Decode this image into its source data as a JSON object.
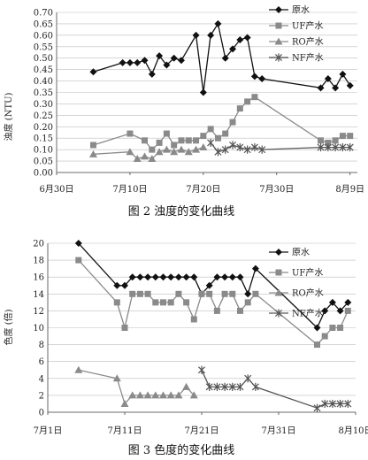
{
  "chart_data": [
    {
      "type": "line",
      "caption": "图 2  浊度的变化曲线",
      "ylabel": "浊度 (NTU)",
      "xlabel": "",
      "x_axis": "date",
      "xlim": [
        "2015-06-30",
        "2015-08-10"
      ],
      "xticks": [
        {
          "date": "2015-06-30",
          "label": "6月30日"
        },
        {
          "date": "2015-07-10",
          "label": "7月10日"
        },
        {
          "date": "2015-07-20",
          "label": "7月20日"
        },
        {
          "date": "2015-07-30",
          "label": "7月30日"
        },
        {
          "date": "2015-08-09",
          "label": "8月9日"
        }
      ],
      "ylim": [
        0,
        0.7
      ],
      "yticks": [
        0,
        0.05,
        0.1,
        0.15,
        0.2,
        0.25,
        0.3,
        0.35,
        0.4,
        0.45,
        0.5,
        0.55,
        0.6,
        0.65,
        0.7
      ],
      "legend": "top-right",
      "series": [
        {
          "name": "原水",
          "color": "#111111",
          "marker": "diamond",
          "x": [
            "2015-07-05",
            "2015-07-09",
            "2015-07-10",
            "2015-07-11",
            "2015-07-12",
            "2015-07-13",
            "2015-07-14",
            "2015-07-15",
            "2015-07-16",
            "2015-07-17",
            "2015-07-19",
            "2015-07-20",
            "2015-07-21",
            "2015-07-22",
            "2015-07-23",
            "2015-07-24",
            "2015-07-25",
            "2015-07-26",
            "2015-07-27",
            "2015-07-28",
            "2015-08-05",
            "2015-08-06",
            "2015-08-07",
            "2015-08-08",
            "2015-08-09"
          ],
          "values": [
            0.44,
            0.48,
            0.48,
            0.48,
            0.49,
            0.43,
            0.51,
            0.47,
            0.5,
            0.49,
            0.6,
            0.35,
            0.6,
            0.65,
            0.5,
            0.54,
            0.58,
            0.59,
            0.42,
            0.41,
            0.37,
            0.41,
            0.37,
            0.43,
            0.38
          ]
        },
        {
          "name": "UF产水",
          "color": "#8a8a8a",
          "marker": "square",
          "x": [
            "2015-07-05",
            "2015-07-10",
            "2015-07-12",
            "2015-07-13",
            "2015-07-14",
            "2015-07-15",
            "2015-07-16",
            "2015-07-17",
            "2015-07-18",
            "2015-07-19",
            "2015-07-20",
            "2015-07-21",
            "2015-07-22",
            "2015-07-23",
            "2015-07-24",
            "2015-07-25",
            "2015-07-26",
            "2015-07-27",
            "2015-08-05",
            "2015-08-06",
            "2015-08-07",
            "2015-08-08",
            "2015-08-09"
          ],
          "values": [
            0.12,
            0.17,
            0.14,
            0.1,
            0.13,
            0.17,
            0.12,
            0.14,
            0.14,
            0.14,
            0.16,
            0.19,
            0.15,
            0.17,
            0.22,
            0.28,
            0.31,
            0.33,
            0.14,
            0.13,
            0.14,
            0.16,
            0.16
          ]
        },
        {
          "name": "RO产水",
          "color": "#8a8a8a",
          "marker": "triangle",
          "x": [
            "2015-07-05",
            "2015-07-10",
            "2015-07-11",
            "2015-07-12",
            "2015-07-13",
            "2015-07-14",
            "2015-07-15",
            "2015-07-16",
            "2015-07-17",
            "2015-07-18",
            "2015-07-19",
            "2015-07-20"
          ],
          "values": [
            0.08,
            0.09,
            0.06,
            0.07,
            0.06,
            0.09,
            0.1,
            0.09,
            0.1,
            0.09,
            0.1,
            0.11
          ]
        },
        {
          "name": "NF产水",
          "color": "#555555",
          "marker": "star",
          "x": [
            "2015-07-21",
            "2015-07-22",
            "2015-07-23",
            "2015-07-24",
            "2015-07-25",
            "2015-07-26",
            "2015-07-27",
            "2015-07-28",
            "2015-08-05",
            "2015-08-06",
            "2015-08-07",
            "2015-08-08",
            "2015-08-09"
          ],
          "values": [
            0.13,
            0.09,
            0.1,
            0.12,
            0.11,
            0.1,
            0.11,
            0.1,
            0.11,
            0.11,
            0.11,
            0.11,
            0.11
          ]
        }
      ]
    },
    {
      "type": "line",
      "caption": "图 3  色度的变化曲线",
      "ylabel": "色度 (倍)",
      "xlabel": "",
      "x_axis": "date",
      "xlim": [
        "2015-07-01",
        "2015-08-10"
      ],
      "xticks": [
        {
          "date": "2015-07-01",
          "label": "7月1日"
        },
        {
          "date": "2015-07-11",
          "label": "7月11日"
        },
        {
          "date": "2015-07-21",
          "label": "7月21日"
        },
        {
          "date": "2015-07-31",
          "label": "7月31日"
        },
        {
          "date": "2015-08-10",
          "label": "8月10日"
        }
      ],
      "ylim": [
        0,
        20
      ],
      "yticks": [
        0,
        2,
        4,
        6,
        8,
        10,
        12,
        14,
        16,
        18,
        20
      ],
      "legend": "top-right",
      "series": [
        {
          "name": "原水",
          "color": "#111111",
          "marker": "diamond",
          "x": [
            "2015-07-05",
            "2015-07-10",
            "2015-07-11",
            "2015-07-12",
            "2015-07-13",
            "2015-07-14",
            "2015-07-15",
            "2015-07-16",
            "2015-07-17",
            "2015-07-18",
            "2015-07-19",
            "2015-07-20",
            "2015-07-21",
            "2015-07-22",
            "2015-07-23",
            "2015-07-24",
            "2015-07-25",
            "2015-07-26",
            "2015-07-27",
            "2015-07-28",
            "2015-08-05",
            "2015-08-06",
            "2015-08-07",
            "2015-08-08",
            "2015-08-09"
          ],
          "values": [
            20,
            15,
            15,
            16,
            16,
            16,
            16,
            16,
            16,
            16,
            16,
            16,
            14,
            15,
            16,
            16,
            16,
            16,
            14,
            17,
            10,
            12,
            13,
            12,
            13
          ]
        },
        {
          "name": "UF产水",
          "color": "#8a8a8a",
          "marker": "square",
          "x": [
            "2015-07-05",
            "2015-07-10",
            "2015-07-11",
            "2015-07-12",
            "2015-07-13",
            "2015-07-14",
            "2015-07-15",
            "2015-07-16",
            "2015-07-17",
            "2015-07-18",
            "2015-07-19",
            "2015-07-20",
            "2015-07-21",
            "2015-07-22",
            "2015-07-23",
            "2015-07-24",
            "2015-07-25",
            "2015-07-26",
            "2015-07-27",
            "2015-07-28",
            "2015-08-05",
            "2015-08-06",
            "2015-08-07",
            "2015-08-08",
            "2015-08-09"
          ],
          "values": [
            18,
            13,
            10,
            14,
            14,
            14,
            13,
            13,
            13,
            14,
            13,
            11,
            14,
            14,
            12,
            14,
            14,
            12,
            13,
            14,
            8,
            9,
            10,
            10,
            12
          ]
        },
        {
          "name": "RO产水",
          "color": "#8a8a8a",
          "marker": "triangle",
          "x": [
            "2015-07-05",
            "2015-07-10",
            "2015-07-11",
            "2015-07-12",
            "2015-07-13",
            "2015-07-14",
            "2015-07-15",
            "2015-07-16",
            "2015-07-17",
            "2015-07-18",
            "2015-07-19",
            "2015-07-20"
          ],
          "values": [
            5,
            4,
            1,
            2,
            2,
            2,
            2,
            2,
            2,
            2,
            3,
            2
          ]
        },
        {
          "name": "NF产水",
          "color": "#555555",
          "marker": "star",
          "x": [
            "2015-07-21",
            "2015-07-22",
            "2015-07-23",
            "2015-07-24",
            "2015-07-25",
            "2015-07-26",
            "2015-07-27",
            "2015-07-28",
            "2015-08-05",
            "2015-08-06",
            "2015-08-07",
            "2015-08-08",
            "2015-08-09"
          ],
          "values": [
            5,
            3,
            3,
            3,
            3,
            3,
            4,
            3,
            0.5,
            1,
            1,
            1,
            1
          ]
        }
      ]
    }
  ]
}
